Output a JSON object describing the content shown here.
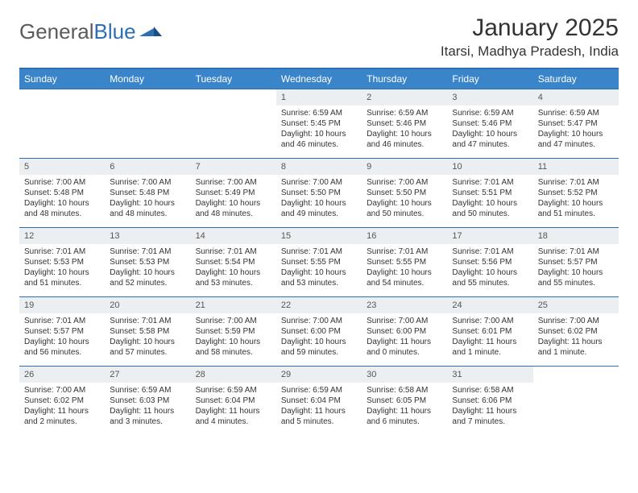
{
  "logo": {
    "text1": "General",
    "text2": "Blue"
  },
  "title": "January 2025",
  "location": "Itarsi, Madhya Pradesh, India",
  "colors": {
    "header_bg": "#3a85c9",
    "border": "#2c6fb5",
    "daynum_bg": "#eceff1",
    "text": "#333333"
  },
  "dayNames": [
    "Sunday",
    "Monday",
    "Tuesday",
    "Wednesday",
    "Thursday",
    "Friday",
    "Saturday"
  ],
  "weeks": [
    [
      null,
      null,
      null,
      {
        "n": "1",
        "sr": "6:59 AM",
        "ss": "5:45 PM",
        "dl": "10 hours and 46 minutes."
      },
      {
        "n": "2",
        "sr": "6:59 AM",
        "ss": "5:46 PM",
        "dl": "10 hours and 46 minutes."
      },
      {
        "n": "3",
        "sr": "6:59 AM",
        "ss": "5:46 PM",
        "dl": "10 hours and 47 minutes."
      },
      {
        "n": "4",
        "sr": "6:59 AM",
        "ss": "5:47 PM",
        "dl": "10 hours and 47 minutes."
      }
    ],
    [
      {
        "n": "5",
        "sr": "7:00 AM",
        "ss": "5:48 PM",
        "dl": "10 hours and 48 minutes."
      },
      {
        "n": "6",
        "sr": "7:00 AM",
        "ss": "5:48 PM",
        "dl": "10 hours and 48 minutes."
      },
      {
        "n": "7",
        "sr": "7:00 AM",
        "ss": "5:49 PM",
        "dl": "10 hours and 48 minutes."
      },
      {
        "n": "8",
        "sr": "7:00 AM",
        "ss": "5:50 PM",
        "dl": "10 hours and 49 minutes."
      },
      {
        "n": "9",
        "sr": "7:00 AM",
        "ss": "5:50 PM",
        "dl": "10 hours and 50 minutes."
      },
      {
        "n": "10",
        "sr": "7:01 AM",
        "ss": "5:51 PM",
        "dl": "10 hours and 50 minutes."
      },
      {
        "n": "11",
        "sr": "7:01 AM",
        "ss": "5:52 PM",
        "dl": "10 hours and 51 minutes."
      }
    ],
    [
      {
        "n": "12",
        "sr": "7:01 AM",
        "ss": "5:53 PM",
        "dl": "10 hours and 51 minutes."
      },
      {
        "n": "13",
        "sr": "7:01 AM",
        "ss": "5:53 PM",
        "dl": "10 hours and 52 minutes."
      },
      {
        "n": "14",
        "sr": "7:01 AM",
        "ss": "5:54 PM",
        "dl": "10 hours and 53 minutes."
      },
      {
        "n": "15",
        "sr": "7:01 AM",
        "ss": "5:55 PM",
        "dl": "10 hours and 53 minutes."
      },
      {
        "n": "16",
        "sr": "7:01 AM",
        "ss": "5:55 PM",
        "dl": "10 hours and 54 minutes."
      },
      {
        "n": "17",
        "sr": "7:01 AM",
        "ss": "5:56 PM",
        "dl": "10 hours and 55 minutes."
      },
      {
        "n": "18",
        "sr": "7:01 AM",
        "ss": "5:57 PM",
        "dl": "10 hours and 55 minutes."
      }
    ],
    [
      {
        "n": "19",
        "sr": "7:01 AM",
        "ss": "5:57 PM",
        "dl": "10 hours and 56 minutes."
      },
      {
        "n": "20",
        "sr": "7:01 AM",
        "ss": "5:58 PM",
        "dl": "10 hours and 57 minutes."
      },
      {
        "n": "21",
        "sr": "7:00 AM",
        "ss": "5:59 PM",
        "dl": "10 hours and 58 minutes."
      },
      {
        "n": "22",
        "sr": "7:00 AM",
        "ss": "6:00 PM",
        "dl": "10 hours and 59 minutes."
      },
      {
        "n": "23",
        "sr": "7:00 AM",
        "ss": "6:00 PM",
        "dl": "11 hours and 0 minutes."
      },
      {
        "n": "24",
        "sr": "7:00 AM",
        "ss": "6:01 PM",
        "dl": "11 hours and 1 minute."
      },
      {
        "n": "25",
        "sr": "7:00 AM",
        "ss": "6:02 PM",
        "dl": "11 hours and 1 minute."
      }
    ],
    [
      {
        "n": "26",
        "sr": "7:00 AM",
        "ss": "6:02 PM",
        "dl": "11 hours and 2 minutes."
      },
      {
        "n": "27",
        "sr": "6:59 AM",
        "ss": "6:03 PM",
        "dl": "11 hours and 3 minutes."
      },
      {
        "n": "28",
        "sr": "6:59 AM",
        "ss": "6:04 PM",
        "dl": "11 hours and 4 minutes."
      },
      {
        "n": "29",
        "sr": "6:59 AM",
        "ss": "6:04 PM",
        "dl": "11 hours and 5 minutes."
      },
      {
        "n": "30",
        "sr": "6:58 AM",
        "ss": "6:05 PM",
        "dl": "11 hours and 6 minutes."
      },
      {
        "n": "31",
        "sr": "6:58 AM",
        "ss": "6:06 PM",
        "dl": "11 hours and 7 minutes."
      },
      null
    ]
  ],
  "labels": {
    "sunrise": "Sunrise:",
    "sunset": "Sunset:",
    "daylight": "Daylight:"
  }
}
